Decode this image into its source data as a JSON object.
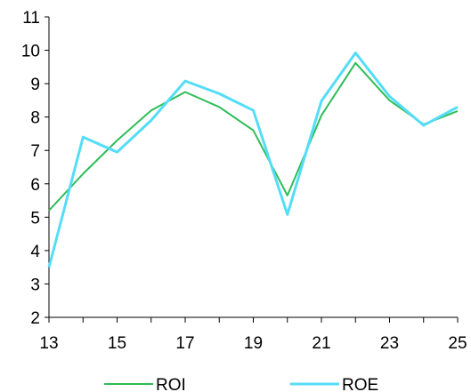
{
  "chart_data": {
    "type": "line",
    "x": [
      13,
      14,
      15,
      16,
      17,
      18,
      19,
      20,
      21,
      22,
      23,
      24,
      25
    ],
    "xticks": [
      13,
      15,
      17,
      19,
      21,
      23,
      25
    ],
    "xlim": [
      13,
      25
    ],
    "ylim": [
      2,
      11
    ],
    "yticks": [
      2,
      3,
      4,
      5,
      6,
      7,
      8,
      9,
      10,
      11
    ],
    "series": [
      {
        "name": "ROI",
        "color": "#2ebd59",
        "values": [
          5.2,
          6.3,
          7.3,
          8.2,
          8.75,
          8.3,
          7.6,
          5.65,
          8.05,
          9.62,
          8.5,
          7.78,
          8.18
        ]
      },
      {
        "name": "ROE",
        "color": "#55ddf7",
        "values": [
          3.5,
          7.4,
          6.95,
          7.9,
          9.08,
          8.7,
          8.2,
          5.08,
          8.48,
          9.92,
          8.62,
          7.75,
          8.3
        ]
      }
    ],
    "grid": false,
    "legend": "bottom"
  }
}
